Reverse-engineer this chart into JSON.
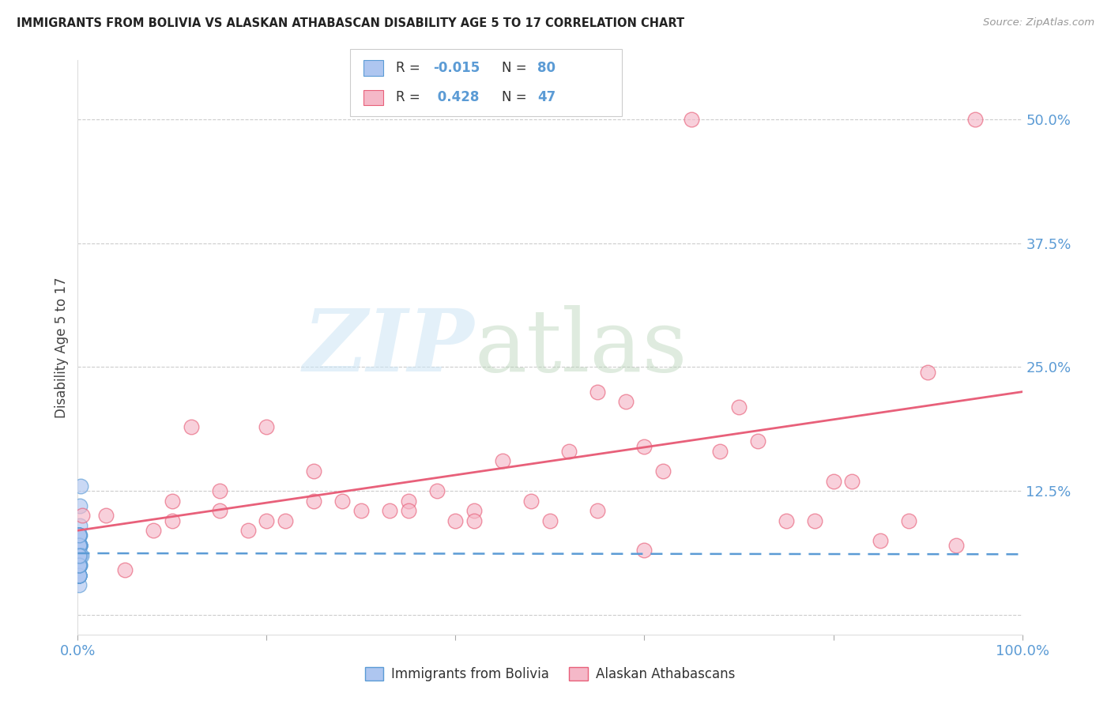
{
  "title": "IMMIGRANTS FROM BOLIVIA VS ALASKAN ATHABASCAN DISABILITY AGE 5 TO 17 CORRELATION CHART",
  "source": "Source: ZipAtlas.com",
  "ylabel": "Disability Age 5 to 17",
  "xlim": [
    0.0,
    1.0
  ],
  "ylim": [
    -0.02,
    0.56
  ],
  "yticks": [
    0.0,
    0.125,
    0.25,
    0.375,
    0.5
  ],
  "ytick_labels": [
    "",
    "12.5%",
    "25.0%",
    "37.5%",
    "50.0%"
  ],
  "xticks": [
    0.0,
    0.2,
    0.4,
    0.6,
    0.8,
    1.0
  ],
  "xtick_labels": [
    "0.0%",
    "",
    "",
    "",
    "",
    "100.0%"
  ],
  "legend_labels": [
    "Immigrants from Bolivia",
    "Alaskan Athabascans"
  ],
  "color_bolivia": "#aec6f0",
  "color_athabascan": "#f5b8c8",
  "line_color_bolivia": "#5b9bd5",
  "line_color_athabascan": "#e8607a",
  "R_bolivia": -0.015,
  "N_bolivia": 80,
  "R_athabascan": 0.428,
  "N_athabascan": 47,
  "background_color": "#ffffff",
  "bolivia_x": [
    0.001,
    0.001,
    0.001,
    0.001,
    0.002,
    0.001,
    0.001,
    0.002,
    0.001,
    0.001,
    0.002,
    0.001,
    0.001,
    0.001,
    0.002,
    0.001,
    0.001,
    0.002,
    0.001,
    0.001,
    0.003,
    0.002,
    0.001,
    0.002,
    0.001,
    0.001,
    0.002,
    0.001,
    0.001,
    0.002,
    0.001,
    0.001,
    0.001,
    0.002,
    0.001,
    0.001,
    0.001,
    0.001,
    0.001,
    0.001,
    0.002,
    0.001,
    0.001,
    0.001,
    0.001,
    0.001,
    0.002,
    0.001,
    0.001,
    0.001,
    0.001,
    0.001,
    0.001,
    0.002,
    0.001,
    0.001,
    0.001,
    0.001,
    0.001,
    0.001,
    0.001,
    0.001,
    0.001,
    0.001,
    0.002,
    0.001,
    0.001,
    0.001,
    0.001,
    0.001,
    0.001,
    0.001,
    0.001,
    0.001,
    0.001,
    0.001,
    0.004,
    0.001,
    0.001,
    0.001
  ],
  "bolivia_y": [
    0.05,
    0.06,
    0.04,
    0.03,
    0.07,
    0.08,
    0.05,
    0.06,
    0.04,
    0.07,
    0.09,
    0.05,
    0.06,
    0.04,
    0.07,
    0.05,
    0.08,
    0.06,
    0.05,
    0.07,
    0.13,
    0.11,
    0.06,
    0.05,
    0.08,
    0.06,
    0.07,
    0.05,
    0.04,
    0.06,
    0.07,
    0.05,
    0.06,
    0.08,
    0.05,
    0.04,
    0.07,
    0.06,
    0.05,
    0.08,
    0.07,
    0.06,
    0.05,
    0.04,
    0.06,
    0.07,
    0.05,
    0.06,
    0.07,
    0.05,
    0.06,
    0.04,
    0.07,
    0.06,
    0.05,
    0.08,
    0.07,
    0.06,
    0.05,
    0.04,
    0.06,
    0.07,
    0.05,
    0.06,
    0.07,
    0.05,
    0.08,
    0.06,
    0.05,
    0.07,
    0.06,
    0.05,
    0.04,
    0.06,
    0.07,
    0.05,
    0.06,
    0.08,
    0.05,
    0.06
  ],
  "athabascan_x": [
    0.005,
    0.12,
    0.2,
    0.03,
    0.35,
    0.15,
    0.5,
    0.6,
    0.45,
    0.08,
    0.25,
    0.42,
    0.18,
    0.65,
    0.55,
    0.3,
    0.22,
    0.38,
    0.7,
    0.1,
    0.82,
    0.48,
    0.58,
    0.72,
    0.15,
    0.28,
    0.62,
    0.9,
    0.4,
    0.8,
    0.52,
    0.35,
    0.2,
    0.68,
    0.88,
    0.95,
    0.05,
    0.75,
    0.33,
    0.55,
    0.42,
    0.78,
    0.85,
    0.6,
    0.25,
    0.93,
    0.1
  ],
  "athabascan_y": [
    0.1,
    0.19,
    0.19,
    0.1,
    0.115,
    0.105,
    0.095,
    0.17,
    0.155,
    0.085,
    0.115,
    0.105,
    0.085,
    0.5,
    0.225,
    0.105,
    0.095,
    0.125,
    0.21,
    0.095,
    0.135,
    0.115,
    0.215,
    0.175,
    0.125,
    0.115,
    0.145,
    0.245,
    0.095,
    0.135,
    0.165,
    0.105,
    0.095,
    0.165,
    0.095,
    0.5,
    0.045,
    0.095,
    0.105,
    0.105,
    0.095,
    0.095,
    0.075,
    0.065,
    0.145,
    0.07,
    0.115
  ],
  "bolivia_line_x": [
    0.0,
    1.0
  ],
  "bolivia_line_y": [
    0.062,
    0.061
  ],
  "athabascan_line_x": [
    0.0,
    1.0
  ],
  "athabascan_line_y": [
    0.085,
    0.225
  ]
}
